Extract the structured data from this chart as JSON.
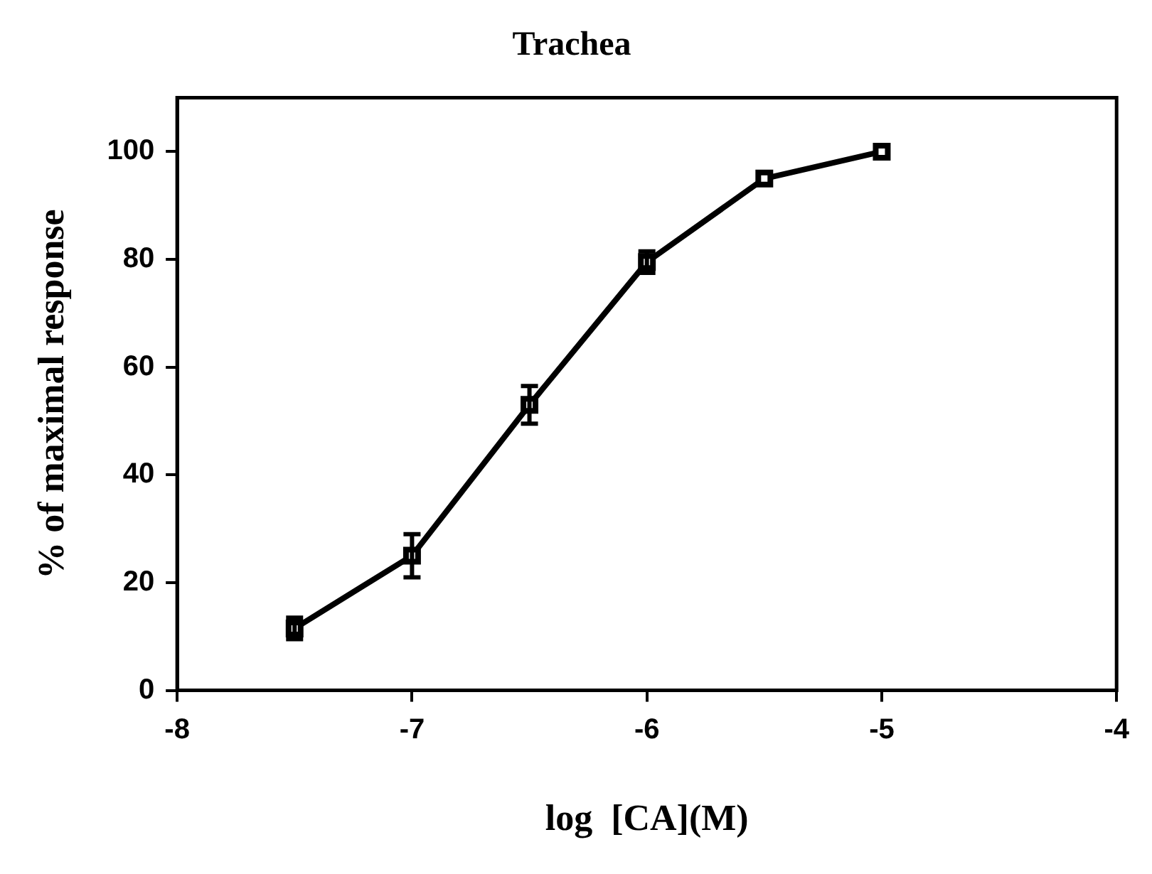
{
  "chart_data": {
    "type": "line",
    "title": "Trachea",
    "xlabel": "log  [CA](M)",
    "ylabel": "% of maximal response",
    "x": [
      -7.5,
      -7,
      -6.5,
      -6,
      -5.5,
      -5
    ],
    "series": [
      {
        "color": "#000000",
        "values": [
          11.5,
          25,
          53,
          79.5,
          95,
          100
        ],
        "errors": [
          2,
          4,
          3.5,
          2,
          null,
          null
        ]
      }
    ],
    "xlim": [
      -8,
      -4
    ],
    "xticks": [
      -8,
      -7,
      -6,
      -5,
      -4
    ],
    "ylim": [
      0,
      110
    ],
    "yticks": [
      0,
      20,
      40,
      60,
      80,
      100
    ],
    "grid": false,
    "legend": false,
    "marker": "square",
    "line_style": "solid"
  }
}
